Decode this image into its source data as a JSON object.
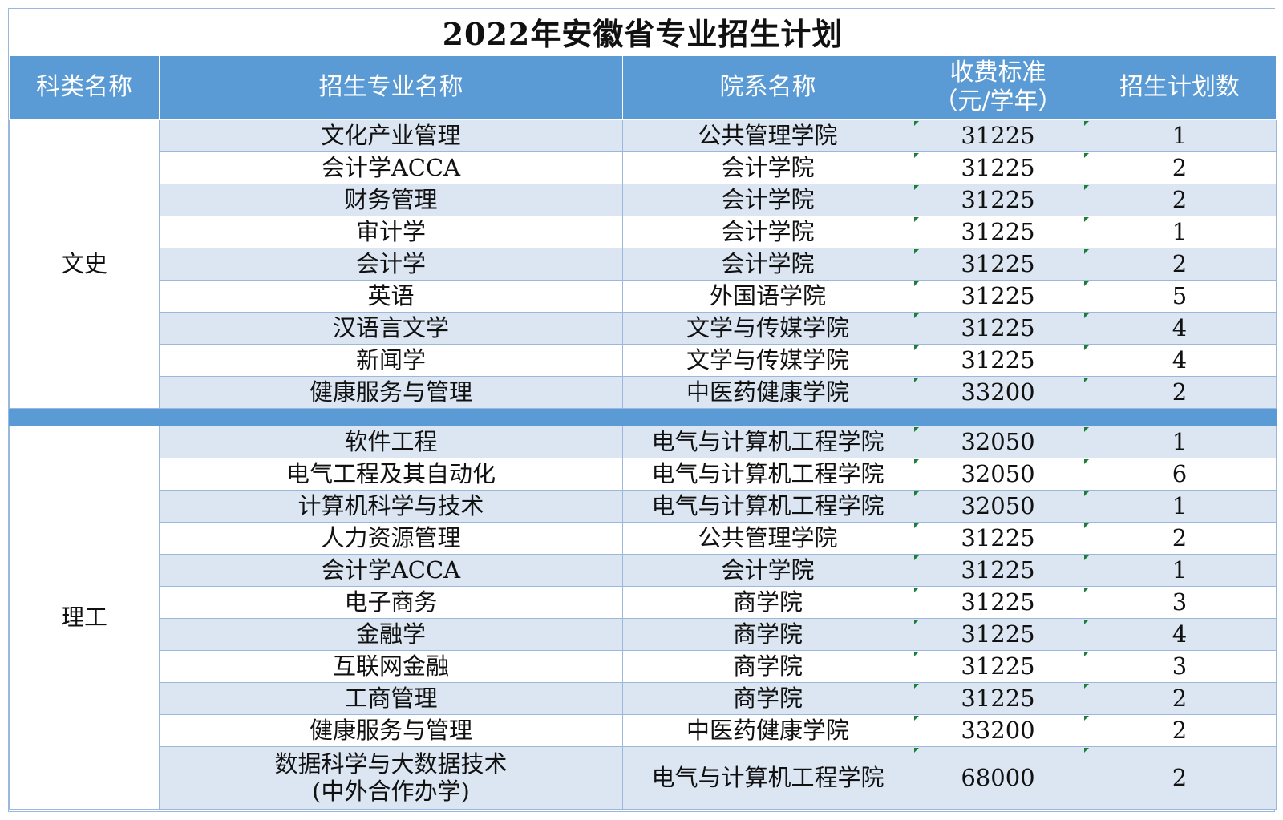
{
  "title": "2022年安徽省专业招生计划",
  "headers": {
    "category": "科类名称",
    "major": "招生专业名称",
    "department": "院系名称",
    "fee_line1": "收费标准",
    "fee_line2": "（元/学年）",
    "plan": "招生计划数"
  },
  "groups": [
    {
      "category": "文史",
      "rows": [
        {
          "major": "文化产业管理",
          "department": "公共管理学院",
          "fee": "31225",
          "plan": "1"
        },
        {
          "major": "会计学ACCA",
          "department": "会计学院",
          "fee": "31225",
          "plan": "2"
        },
        {
          "major": "财务管理",
          "department": "会计学院",
          "fee": "31225",
          "plan": "2"
        },
        {
          "major": "审计学",
          "department": "会计学院",
          "fee": "31225",
          "plan": "1"
        },
        {
          "major": "会计学",
          "department": "会计学院",
          "fee": "31225",
          "plan": "2"
        },
        {
          "major": "英语",
          "department": "外国语学院",
          "fee": "31225",
          "plan": "5"
        },
        {
          "major": "汉语言文学",
          "department": "文学与传媒学院",
          "fee": "31225",
          "plan": "4"
        },
        {
          "major": "新闻学",
          "department": "文学与传媒学院",
          "fee": "31225",
          "plan": "4"
        },
        {
          "major": "健康服务与管理",
          "department": "中医药健康学院",
          "fee": "33200",
          "plan": "2"
        }
      ]
    },
    {
      "category": "理工",
      "rows": [
        {
          "major": "软件工程",
          "department": "电气与计算机工程学院",
          "fee": "32050",
          "plan": "1"
        },
        {
          "major": "电气工程及其自动化",
          "department": "电气与计算机工程学院",
          "fee": "32050",
          "plan": "6"
        },
        {
          "major": "计算机科学与技术",
          "department": "电气与计算机工程学院",
          "fee": "32050",
          "plan": "1"
        },
        {
          "major": "人力资源管理",
          "department": "公共管理学院",
          "fee": "31225",
          "plan": "2"
        },
        {
          "major": "会计学ACCA",
          "department": "会计学院",
          "fee": "31225",
          "plan": "1"
        },
        {
          "major": "电子商务",
          "department": "商学院",
          "fee": "31225",
          "plan": "3"
        },
        {
          "major": "金融学",
          "department": "商学院",
          "fee": "31225",
          "plan": "4"
        },
        {
          "major": "互联网金融",
          "department": "商学院",
          "fee": "31225",
          "plan": "3"
        },
        {
          "major": "工商管理",
          "department": "商学院",
          "fee": "31225",
          "plan": "2"
        },
        {
          "major": "健康服务与管理",
          "department": "中医药健康学院",
          "fee": "33200",
          "plan": "2"
        },
        {
          "major": "数据科学与大数据技术",
          "major_line2": "(中外合作办学)",
          "department": "电气与计算机工程学院",
          "fee": "68000",
          "plan": "2"
        }
      ]
    }
  ]
}
